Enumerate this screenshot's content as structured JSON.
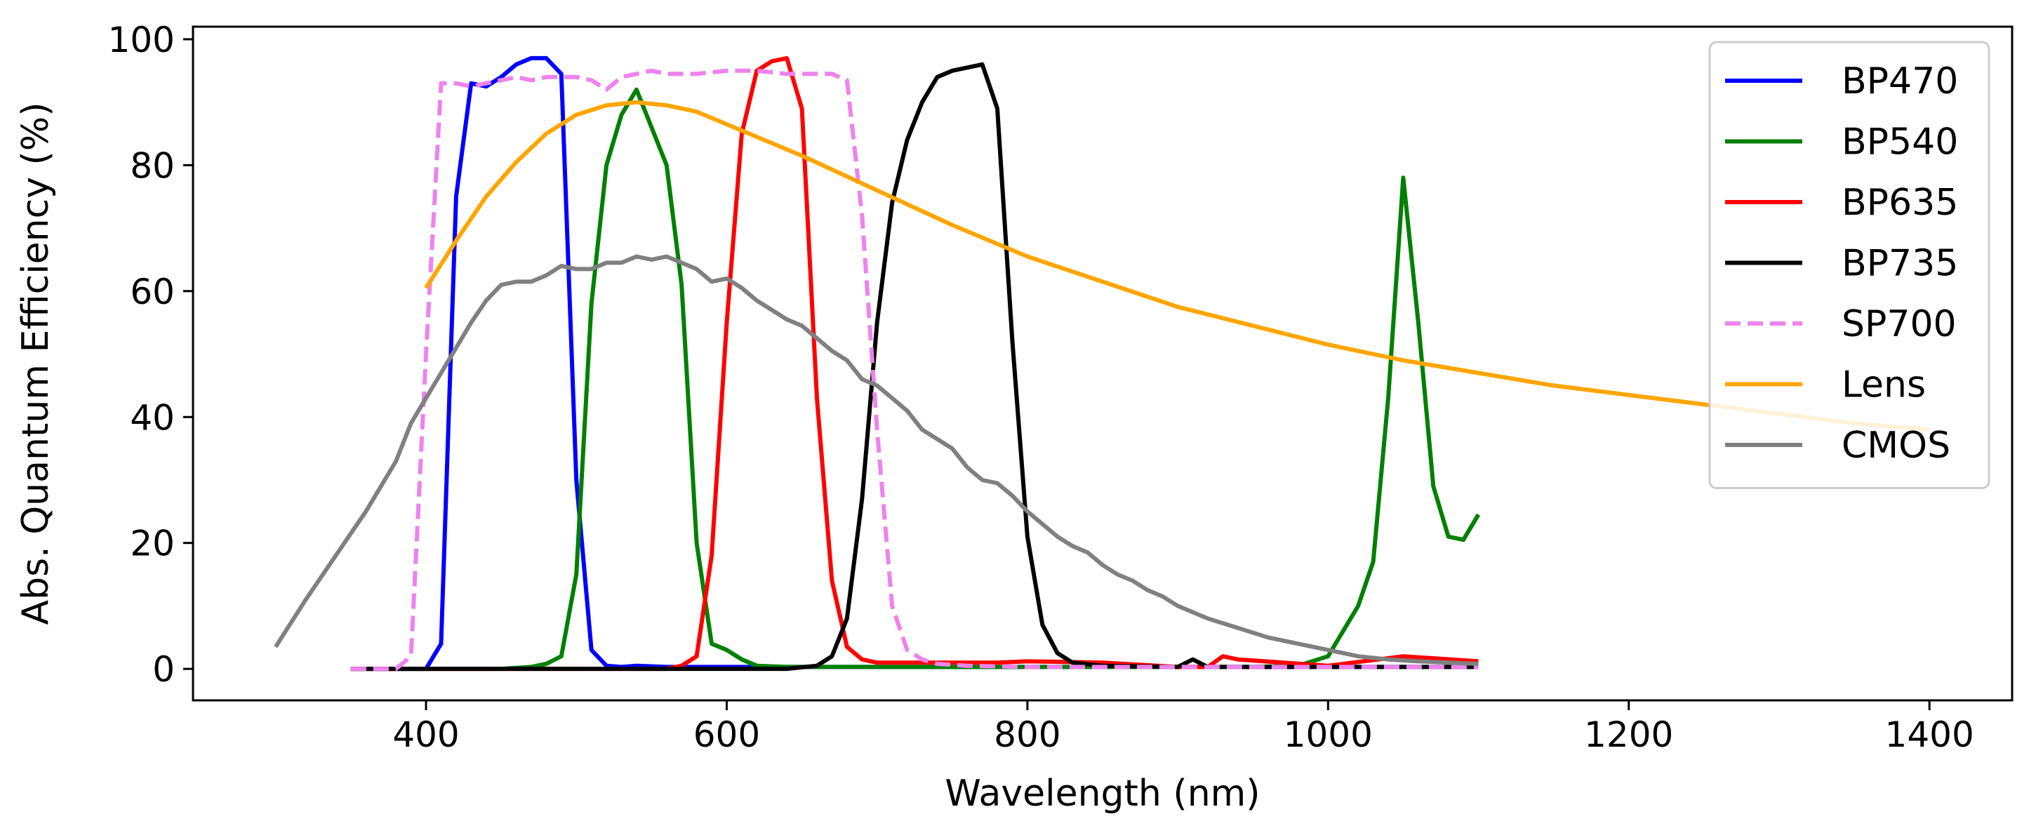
{
  "chart_data": {
    "type": "line",
    "title": "",
    "xlabel": "Wavelength (nm)",
    "ylabel": "Abs. Quantum Efficiency (%)",
    "xlim": [
      245,
      1455
    ],
    "ylim": [
      -5,
      102
    ],
    "xticks": [
      400,
      600,
      800,
      1000,
      1200,
      1400
    ],
    "yticks": [
      0,
      20,
      40,
      60,
      80,
      100
    ],
    "grid": false,
    "legend_position": "top-right",
    "series": [
      {
        "name": "BP470",
        "color": "#0000ff",
        "dash": "solid",
        "x": [
          350,
          390,
          400,
          410,
          420,
          430,
          440,
          450,
          460,
          470,
          480,
          490,
          500,
          510,
          520,
          530,
          540,
          560,
          580,
          600,
          620,
          650,
          700,
          800,
          900,
          1000,
          1100
        ],
        "y": [
          0,
          0,
          0,
          4,
          75,
          93,
          92.5,
          94,
          96,
          97,
          97,
          94.5,
          30,
          3,
          0.5,
          0.3,
          0.5,
          0.3,
          0.3,
          0.3,
          0.3,
          0.3,
          0.3,
          0.3,
          0.3,
          0.3,
          0.3
        ]
      },
      {
        "name": "BP540",
        "color": "#008000",
        "dash": "solid",
        "x": [
          350,
          450,
          470,
          480,
          490,
          500,
          510,
          520,
          530,
          540,
          550,
          560,
          570,
          580,
          590,
          600,
          610,
          620,
          640,
          700,
          800,
          900,
          950,
          980,
          1000,
          1010,
          1020,
          1030,
          1040,
          1050,
          1060,
          1070,
          1080,
          1090,
          1100
        ],
        "y": [
          0,
          0,
          0.3,
          0.8,
          2,
          15,
          58,
          80,
          88,
          92,
          86,
          80,
          61,
          20,
          4,
          3,
          1.5,
          0.5,
          0.3,
          0.3,
          0.3,
          0.3,
          0.3,
          0.5,
          2,
          6,
          10,
          17,
          43,
          78,
          55,
          29,
          21,
          20.5,
          24.5
        ]
      },
      {
        "name": "BP635",
        "color": "#ff0000",
        "dash": "solid",
        "x": [
          350,
          560,
          570,
          580,
          590,
          600,
          610,
          620,
          630,
          640,
          650,
          660,
          670,
          680,
          690,
          700,
          720,
          780,
          800,
          850,
          900,
          920,
          930,
          940,
          1000,
          1050,
          1100
        ],
        "y": [
          0,
          0,
          0.5,
          2,
          18,
          55,
          85,
          95,
          96.5,
          97,
          89,
          43,
          14,
          3.5,
          1.5,
          1,
          1,
          1,
          1.2,
          1,
          0.3,
          0.3,
          2,
          1.5,
          0.5,
          2,
          1.2
        ]
      },
      {
        "name": "BP735",
        "color": "#000000",
        "dash": "solid",
        "x": [
          350,
          640,
          660,
          670,
          680,
          690,
          700,
          710,
          720,
          730,
          740,
          750,
          760,
          770,
          780,
          790,
          800,
          810,
          820,
          830,
          850,
          900,
          910,
          920,
          950,
          1000,
          1100
        ],
        "y": [
          0,
          0,
          0.5,
          2,
          8,
          27,
          55,
          74,
          84,
          90,
          94,
          95,
          95.5,
          96,
          89,
          52,
          21,
          7,
          2.5,
          1,
          0.5,
          0.3,
          1.5,
          0.3,
          0.3,
          0.3,
          0.3
        ]
      },
      {
        "name": "SP700",
        "color": "#ee82ee",
        "dash": "dashed",
        "x": [
          350,
          370,
          380,
          390,
          400,
          410,
          420,
          430,
          440,
          450,
          460,
          470,
          480,
          490,
          500,
          510,
          520,
          530,
          540,
          550,
          560,
          580,
          600,
          620,
          640,
          660,
          670,
          680,
          690,
          700,
          710,
          720,
          730,
          740,
          760,
          800,
          900,
          1000,
          1100
        ],
        "y": [
          0,
          0,
          0,
          2,
          50,
          93,
          93,
          92.5,
          93,
          93.5,
          94,
          93.5,
          94,
          94,
          94,
          93.5,
          92,
          94,
          94.5,
          95,
          94.5,
          94.5,
          95,
          95,
          94.5,
          94.5,
          94.5,
          93.5,
          72,
          38,
          10,
          3,
          1.5,
          0.8,
          0.5,
          0.3,
          0.3,
          0.3,
          0.3
        ]
      },
      {
        "name": "Lens",
        "color": "#ffa500",
        "dash": "solid",
        "x": [
          400,
          420,
          440,
          460,
          480,
          500,
          520,
          540,
          560,
          580,
          600,
          650,
          700,
          750,
          800,
          850,
          900,
          950,
          1000,
          1050,
          1100,
          1150,
          1200,
          1250,
          1300,
          1350,
          1400
        ],
        "y": [
          60.5,
          68,
          75,
          80.5,
          85,
          88,
          89.5,
          90,
          89.5,
          88.5,
          86.5,
          81.5,
          76,
          70.5,
          65.5,
          61.5,
          57.5,
          54.5,
          51.5,
          49,
          47,
          45,
          43.5,
          42,
          40.5,
          39,
          38
        ]
      },
      {
        "name": "CMOS",
        "color": "#808080",
        "dash": "solid",
        "x": [
          300,
          320,
          340,
          360,
          370,
          380,
          390,
          400,
          410,
          420,
          430,
          440,
          450,
          460,
          470,
          480,
          490,
          500,
          510,
          520,
          530,
          540,
          550,
          560,
          570,
          580,
          590,
          600,
          610,
          620,
          630,
          640,
          650,
          660,
          670,
          680,
          690,
          700,
          710,
          720,
          730,
          740,
          750,
          760,
          770,
          780,
          790,
          800,
          810,
          820,
          830,
          840,
          850,
          860,
          870,
          880,
          890,
          900,
          920,
          940,
          960,
          980,
          1000,
          1020,
          1040,
          1060,
          1080,
          1100
        ],
        "y": [
          3.5,
          11,
          18,
          25,
          29,
          33,
          39,
          43,
          47,
          51,
          55,
          58.5,
          61,
          61.5,
          61.5,
          62.5,
          64,
          63.5,
          63.5,
          64.5,
          64.5,
          65.5,
          65,
          65.5,
          64.5,
          63.5,
          61.5,
          62,
          60.5,
          58.5,
          57,
          55.5,
          54.5,
          52.5,
          50.5,
          49,
          46,
          45,
          43,
          41,
          38,
          36.5,
          35,
          32,
          30,
          29.5,
          27.5,
          25,
          23,
          21,
          19.5,
          18.5,
          16.5,
          15,
          14,
          12.5,
          11.5,
          10,
          8,
          6.5,
          5,
          4,
          3,
          2,
          1.5,
          1.2,
          1,
          0.8
        ]
      }
    ]
  }
}
